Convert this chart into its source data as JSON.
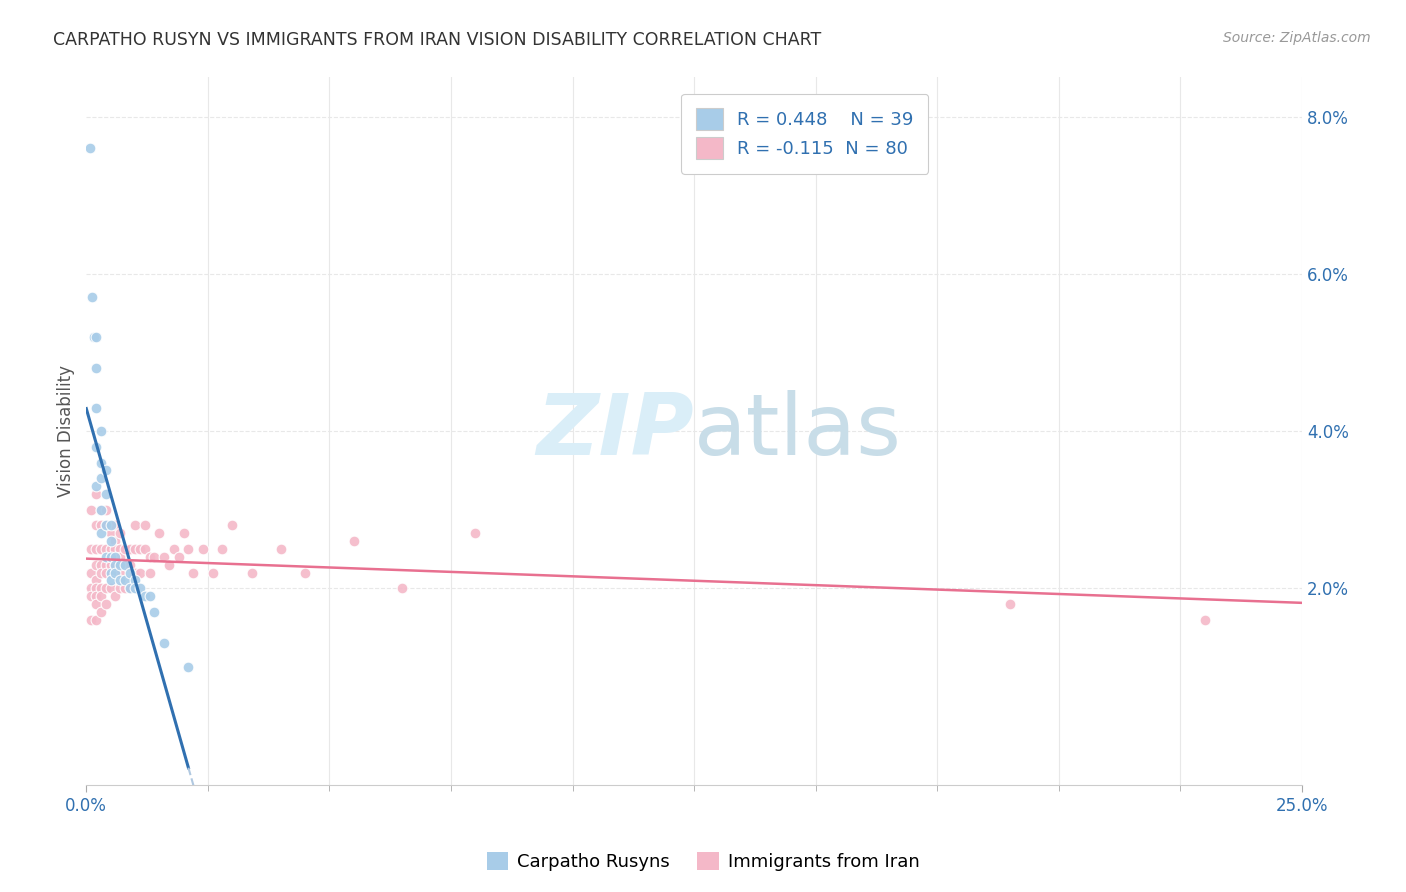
{
  "title": "CARPATHO RUSYN VS IMMIGRANTS FROM IRAN VISION DISABILITY CORRELATION CHART",
  "source": "Source: ZipAtlas.com",
  "ylabel": "Vision Disability",
  "xlim": [
    0.0,
    0.25
  ],
  "ylim": [
    -0.005,
    0.085
  ],
  "color_blue": "#a8cce8",
  "color_pink": "#f4b8c8",
  "color_trendline_blue": "#3070b0",
  "color_trendline_pink": "#e87090",
  "color_trendline_dash": "#b0c8e0",
  "color_text_blue": "#3070b0",
  "color_watermark": "#daeef8",
  "color_grid": "#e8e8e8",
  "background_color": "#ffffff",
  "carpatho_rusyn_x": [
    0.0008,
    0.0012,
    0.0015,
    0.002,
    0.002,
    0.002,
    0.002,
    0.002,
    0.003,
    0.003,
    0.003,
    0.003,
    0.003,
    0.004,
    0.004,
    0.004,
    0.004,
    0.005,
    0.005,
    0.005,
    0.005,
    0.005,
    0.006,
    0.006,
    0.006,
    0.007,
    0.007,
    0.008,
    0.008,
    0.009,
    0.009,
    0.01,
    0.01,
    0.011,
    0.012,
    0.013,
    0.014,
    0.016,
    0.021
  ],
  "carpatho_rusyn_y": [
    0.076,
    0.057,
    0.052,
    0.052,
    0.048,
    0.043,
    0.038,
    0.033,
    0.04,
    0.036,
    0.034,
    0.03,
    0.027,
    0.035,
    0.032,
    0.028,
    0.024,
    0.028,
    0.026,
    0.024,
    0.022,
    0.021,
    0.024,
    0.023,
    0.022,
    0.023,
    0.021,
    0.023,
    0.021,
    0.022,
    0.02,
    0.021,
    0.02,
    0.02,
    0.019,
    0.019,
    0.017,
    0.013,
    0.01
  ],
  "iran_x": [
    0.001,
    0.001,
    0.001,
    0.001,
    0.001,
    0.001,
    0.002,
    0.002,
    0.002,
    0.002,
    0.002,
    0.002,
    0.002,
    0.002,
    0.002,
    0.003,
    0.003,
    0.003,
    0.003,
    0.003,
    0.003,
    0.003,
    0.003,
    0.004,
    0.004,
    0.004,
    0.004,
    0.004,
    0.004,
    0.004,
    0.005,
    0.005,
    0.005,
    0.005,
    0.006,
    0.006,
    0.006,
    0.006,
    0.006,
    0.007,
    0.007,
    0.007,
    0.007,
    0.007,
    0.008,
    0.008,
    0.008,
    0.009,
    0.009,
    0.009,
    0.01,
    0.01,
    0.01,
    0.011,
    0.011,
    0.012,
    0.012,
    0.013,
    0.013,
    0.014,
    0.015,
    0.016,
    0.017,
    0.018,
    0.019,
    0.02,
    0.021,
    0.022,
    0.024,
    0.026,
    0.028,
    0.03,
    0.034,
    0.04,
    0.045,
    0.055,
    0.065,
    0.08,
    0.19,
    0.23
  ],
  "iran_y": [
    0.03,
    0.025,
    0.022,
    0.02,
    0.019,
    0.016,
    0.032,
    0.028,
    0.025,
    0.023,
    0.021,
    0.02,
    0.019,
    0.018,
    0.016,
    0.03,
    0.028,
    0.025,
    0.023,
    0.022,
    0.02,
    0.019,
    0.017,
    0.03,
    0.028,
    0.025,
    0.023,
    0.022,
    0.02,
    0.018,
    0.027,
    0.025,
    0.023,
    0.02,
    0.028,
    0.026,
    0.025,
    0.023,
    0.019,
    0.027,
    0.025,
    0.024,
    0.022,
    0.02,
    0.025,
    0.023,
    0.02,
    0.025,
    0.023,
    0.02,
    0.028,
    0.025,
    0.022,
    0.025,
    0.022,
    0.028,
    0.025,
    0.024,
    0.022,
    0.024,
    0.027,
    0.024,
    0.023,
    0.025,
    0.024,
    0.027,
    0.025,
    0.022,
    0.025,
    0.022,
    0.025,
    0.028,
    0.022,
    0.025,
    0.022,
    0.026,
    0.02,
    0.027,
    0.018,
    0.016
  ]
}
